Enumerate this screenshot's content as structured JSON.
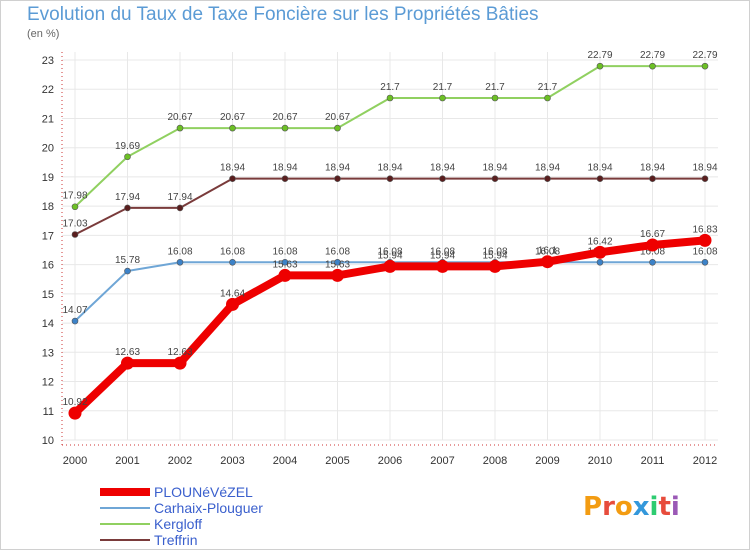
{
  "title": "Evolution du Taux de Taxe Foncière sur les Propriétés Bâties",
  "subtitle": "(en %)",
  "logo": {
    "text": "Proxiti",
    "colors": [
      "#f39c12",
      "#e74c3c",
      "#f39c12",
      "#3498db",
      "#2ecc71",
      "#e74c3c",
      "#9b59b6"
    ]
  },
  "chart_data": {
    "type": "line",
    "title": "Evolution du Taux de Taxe Foncière sur les Propriétés Bâties",
    "ylabel": "(en %)",
    "xlabel": "",
    "ylim": [
      10,
      23
    ],
    "yticks": [
      "10",
      "11",
      "12",
      "13",
      "14",
      "15",
      "16",
      "17",
      "18",
      "19",
      "20",
      "21",
      "22",
      "23"
    ],
    "categories": [
      "2000",
      "2001",
      "2002",
      "2003",
      "2004",
      "2005",
      "2006",
      "2007",
      "2008",
      "2009",
      "2010",
      "2011",
      "2012"
    ],
    "series": [
      {
        "name": "Kergloff",
        "color": "#90d060",
        "marker": "#6cc024",
        "values": [
          17.98,
          19.69,
          20.67,
          20.67,
          20.67,
          20.67,
          21.7,
          21.7,
          21.7,
          21.7,
          22.79,
          22.79,
          22.79
        ],
        "labels": [
          "17.98",
          "19.69",
          "20.67",
          "20.67",
          "20.67",
          "20.67",
          "21.7",
          "21.7",
          "21.7",
          "21.7",
          "22.79",
          "22.79",
          "22.79"
        ]
      },
      {
        "name": "Treffrin",
        "color": "#7a3b3b",
        "marker": "#5a1e1e",
        "values": [
          17.03,
          17.94,
          17.94,
          18.94,
          18.94,
          18.94,
          18.94,
          18.94,
          18.94,
          18.94,
          18.94,
          18.94,
          18.94
        ],
        "labels": [
          "17.03",
          "17.94",
          "17.94",
          "18.94",
          "18.94",
          "18.94",
          "18.94",
          "18.94",
          "18.94",
          "18.94",
          "18.94",
          "18.94",
          "18.94"
        ]
      },
      {
        "name": "Carhaix-Plouguer",
        "color": "#6fa6d6",
        "marker": "#3c82c8",
        "values": [
          14.07,
          15.78,
          16.08,
          16.08,
          16.08,
          16.08,
          16.08,
          16.08,
          16.08,
          16.08,
          16.08,
          16.08,
          16.08
        ],
        "labels": [
          "14.07",
          "15.78",
          "16.08",
          "16.08",
          "16.08",
          "16.08",
          "16.08",
          "16.08",
          "16.08",
          "16.08",
          "16.08",
          "16.08",
          "16.08"
        ]
      },
      {
        "name": "PLOUNéVéZEL",
        "color": "#ee0000",
        "marker": "#ee0000",
        "values": [
          10.92,
          12.63,
          12.63,
          14.64,
          15.63,
          15.63,
          15.94,
          15.94,
          15.94,
          16.1,
          16.42,
          16.67,
          16.83
        ],
        "labels": [
          "10.92",
          "12.63",
          "12.63",
          "14.64",
          "15.63",
          "15.63",
          "15.94",
          "15.94",
          "15.94",
          "16.1",
          "16.42",
          "16.67",
          "16.83"
        ]
      }
    ],
    "legend": [
      "PLOUNéVéZEL",
      "Carhaix-Plouguer",
      "Kergloff",
      "Treffrin"
    ]
  }
}
